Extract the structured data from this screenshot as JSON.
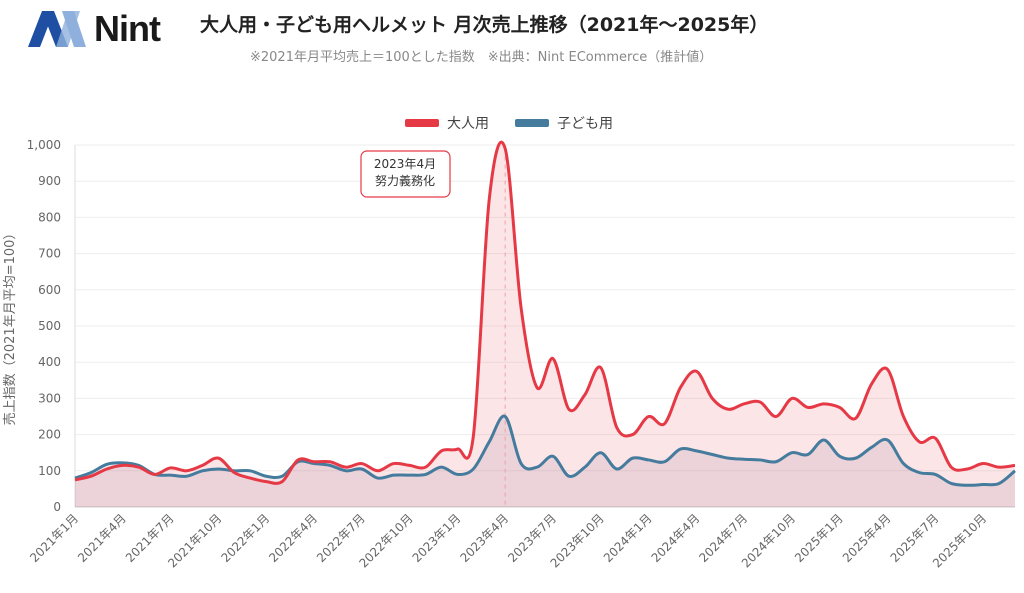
{
  "logo": {
    "text": "Nint"
  },
  "title": "大人用・子ども用ヘルメット 月次売上推移（2021年～2025年）",
  "subtitle": "※2021年月平均売上＝100とした指数　※出典：Nint ECommerce（推計値）",
  "chart_data": {
    "type": "area",
    "title": "大人用・子ども用ヘルメット 月次売上推移（2021年～2025年）",
    "ylabel": "売上指数（2021年月平均=100）",
    "xlabel": "",
    "ylim": [
      0,
      1000
    ],
    "yticks": [
      0,
      100,
      200,
      300,
      400,
      500,
      600,
      700,
      800,
      900,
      1000
    ],
    "ytick_labels": [
      "0",
      "100",
      "200",
      "300",
      "400",
      "500",
      "600",
      "700",
      "800",
      "900",
      "1,000"
    ],
    "x_start": "2021-01",
    "x_months": 60,
    "xtick_labels": [
      "2021年1月",
      "2021年4月",
      "2021年7月",
      "2021年10月",
      "2022年1月",
      "2022年4月",
      "2022年7月",
      "2022年10月",
      "2023年1月",
      "2023年4月",
      "2023年7月",
      "2023年10月",
      "2024年1月",
      "2024年4月",
      "2024年7月",
      "2024年10月",
      "2025年1月",
      "2025年4月",
      "2025年7月",
      "2025年10月"
    ],
    "legend_position": "top-center",
    "grid": true,
    "series": [
      {
        "name": "大人用",
        "color": "#e63946",
        "values": [
          75,
          85,
          105,
          115,
          110,
          90,
          108,
          100,
          115,
          135,
          95,
          80,
          70,
          70,
          130,
          125,
          125,
          110,
          120,
          100,
          120,
          115,
          110,
          155,
          160,
          195,
          850,
          990,
          550,
          330,
          410,
          270,
          310,
          385,
          220,
          200,
          250,
          230,
          330,
          375,
          300,
          270,
          285,
          290,
          250,
          300,
          275,
          285,
          275,
          245,
          340,
          380,
          250,
          180,
          190,
          110,
          105,
          120,
          110,
          115
        ]
      },
      {
        "name": "子ども用",
        "color": "#457b9d",
        "values": [
          80,
          95,
          118,
          122,
          115,
          90,
          88,
          85,
          100,
          105,
          100,
          100,
          85,
          85,
          125,
          120,
          115,
          100,
          105,
          80,
          88,
          88,
          90,
          110,
          90,
          105,
          180,
          250,
          120,
          110,
          140,
          85,
          110,
          150,
          105,
          135,
          130,
          125,
          160,
          155,
          145,
          135,
          132,
          130,
          125,
          150,
          145,
          185,
          140,
          135,
          165,
          185,
          120,
          95,
          90,
          65,
          60,
          62,
          65,
          100
        ]
      }
    ],
    "annotation": {
      "index": 27,
      "lines": [
        "2023年4月",
        "努力義務化"
      ]
    }
  }
}
